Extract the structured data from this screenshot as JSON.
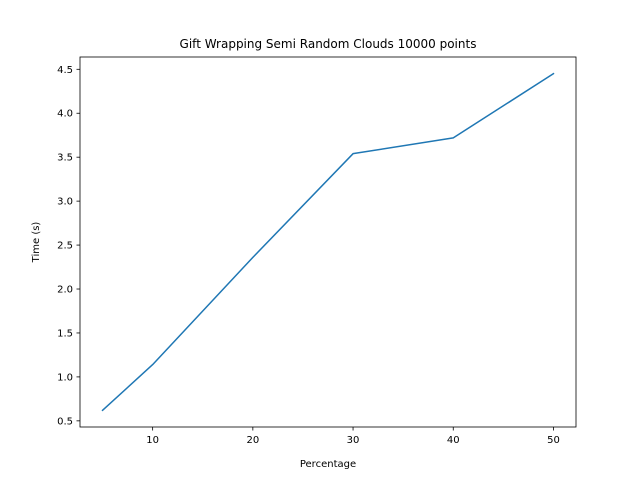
{
  "chart_data": {
    "type": "line",
    "title": "Gift Wrapping Semi Random Clouds 10000 points",
    "xlabel": "Percentage",
    "ylabel": "Time (s)",
    "xlim": [
      2.75,
      52.25
    ],
    "ylim": [
      0.43,
      4.64
    ],
    "xticks": [
      10,
      20,
      30,
      40,
      50
    ],
    "yticks": [
      0.5,
      1.0,
      1.5,
      2.0,
      2.5,
      3.0,
      3.5,
      4.0,
      4.5
    ],
    "xtick_labels": [
      "10",
      "20",
      "30",
      "40",
      "50"
    ],
    "ytick_labels": [
      "0.5",
      "1.0",
      "1.5",
      "2.0",
      "2.5",
      "3.0",
      "3.5",
      "4.0",
      "4.5"
    ],
    "grid": false,
    "legend": "none",
    "series": [
      {
        "color": "#1f77b4",
        "x": [
          5,
          10,
          20,
          30,
          40,
          50
        ],
        "y": [
          0.62,
          1.14,
          2.36,
          3.54,
          3.72,
          4.45
        ]
      }
    ]
  }
}
